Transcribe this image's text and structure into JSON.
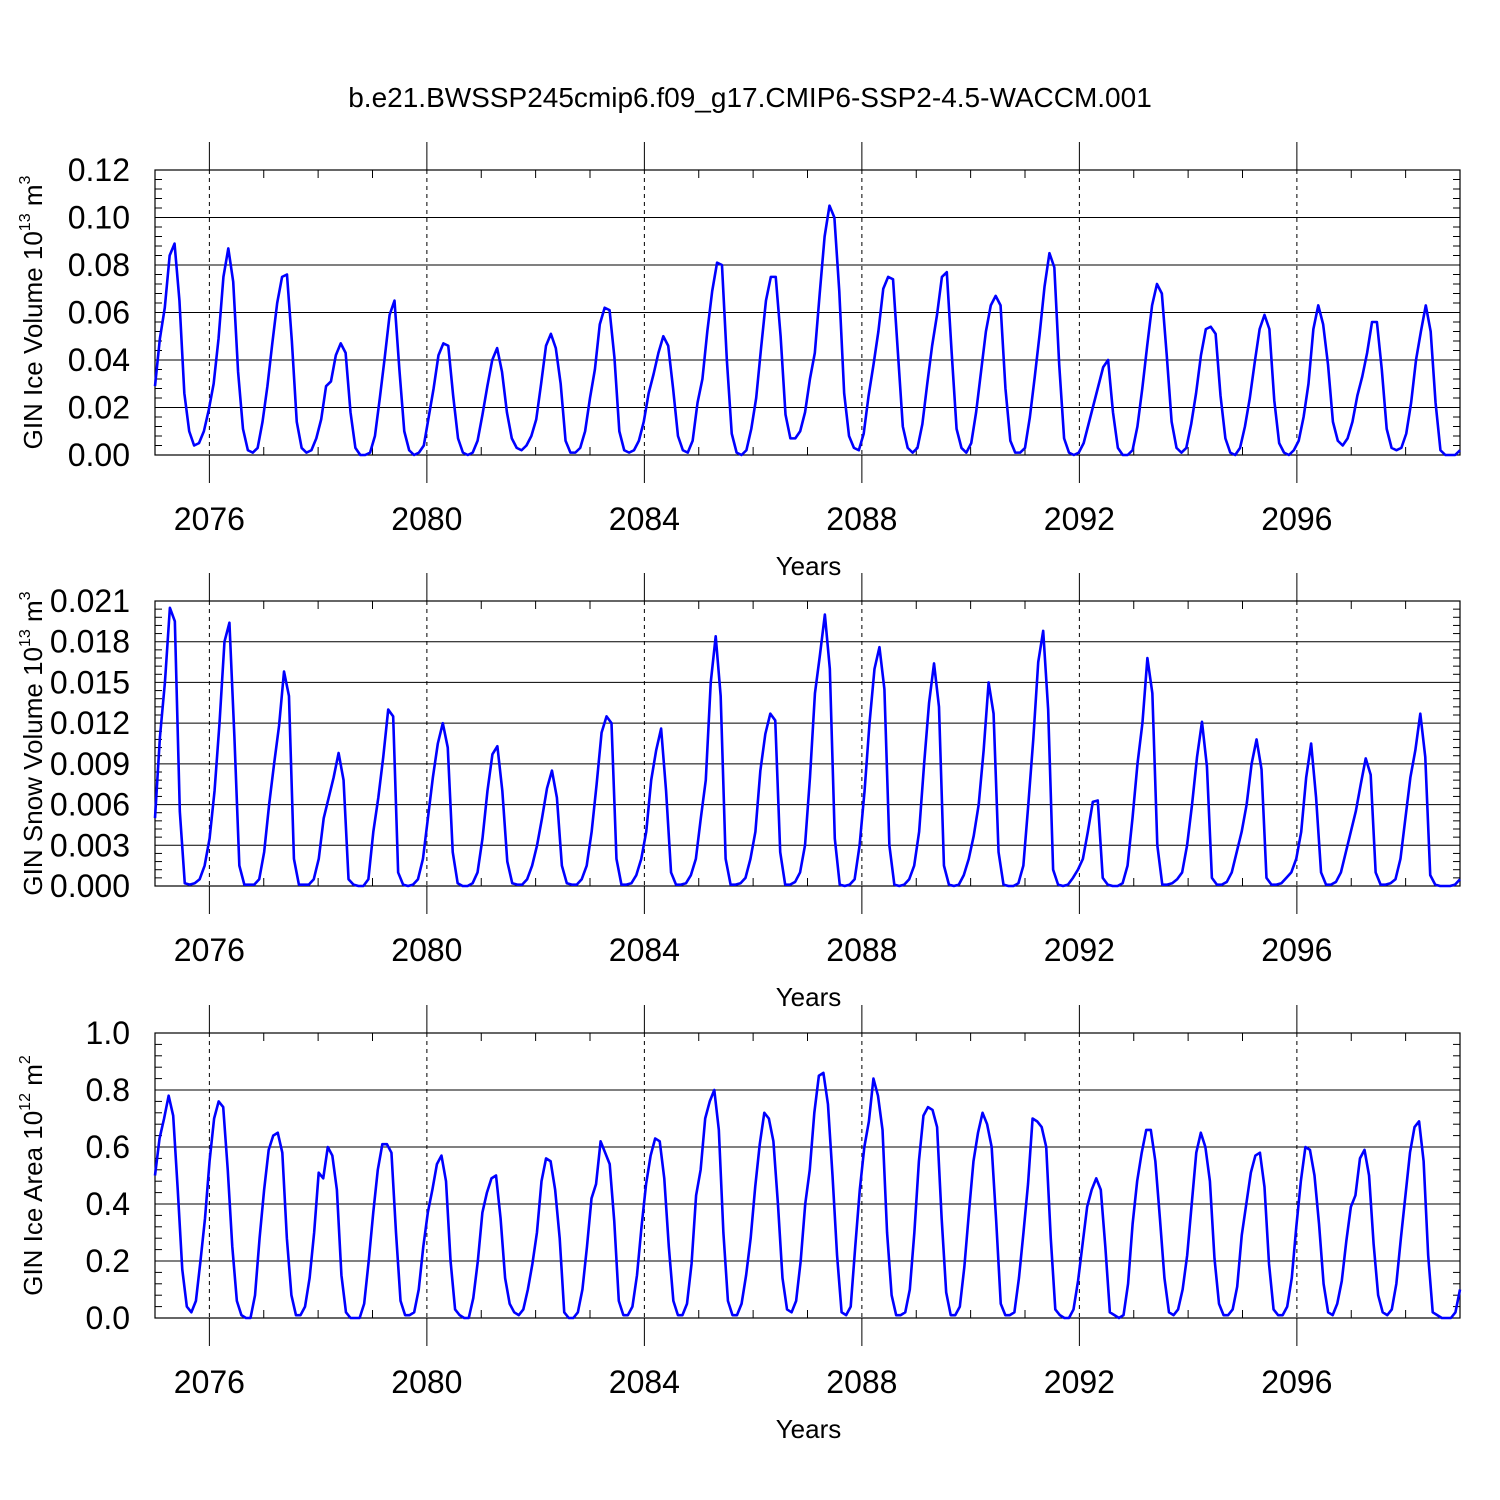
{
  "title": "b.e21.BWSSP245cmip6.f09_g17.CMIP6-SSP2-4.5-WACCM.001",
  "chart_data": [
    {
      "type": "line",
      "xlabel": "Years",
      "ylabel_main": "GIN Ice Volume 10",
      "ylabel_exp": "13",
      "ylabel_unit": " m",
      "ylabel_unit_exp": "3",
      "xlim": [
        2075,
        2099
      ],
      "xticks": [
        2076,
        2080,
        2084,
        2088,
        2092,
        2096
      ],
      "xtick_labels": [
        "2076",
        "2080",
        "2084",
        "2088",
        "2092",
        "2096"
      ],
      "ylim": [
        0,
        0.12
      ],
      "yticks": [
        0,
        0.02,
        0.04,
        0.06,
        0.08,
        0.1,
        0.12
      ],
      "ytick_labels": [
        "0.00",
        "0.02",
        "0.04",
        "0.06",
        "0.08",
        "0.10",
        "0.12"
      ],
      "line_color": "#0000ff",
      "series": [
        {
          "name": "GIN Ice Volume",
          "values": [
            0.029,
            0.049,
            0.062,
            0.084,
            0.089,
            0.065,
            0.026,
            0.01,
            0.004,
            0.005,
            0.01,
            0.019,
            0.03,
            0.049,
            0.075,
            0.087,
            0.073,
            0.035,
            0.011,
            0.002,
            0.001,
            0.003,
            0.014,
            0.029,
            0.047,
            0.064,
            0.075,
            0.076,
            0.048,
            0.014,
            0.003,
            0.001,
            0.002,
            0.007,
            0.015,
            0.029,
            0.031,
            0.042,
            0.047,
            0.043,
            0.018,
            0.003,
            0.0,
            0.0,
            0.001,
            0.008,
            0.024,
            0.041,
            0.059,
            0.065,
            0.036,
            0.01,
            0.002,
            0.0,
            0.001,
            0.004,
            0.016,
            0.028,
            0.042,
            0.047,
            0.046,
            0.025,
            0.007,
            0.001,
            0.0,
            0.001,
            0.006,
            0.017,
            0.029,
            0.04,
            0.045,
            0.035,
            0.018,
            0.007,
            0.003,
            0.002,
            0.004,
            0.008,
            0.015,
            0.03,
            0.046,
            0.051,
            0.045,
            0.03,
            0.006,
            0.001,
            0.001,
            0.003,
            0.01,
            0.024,
            0.036,
            0.055,
            0.062,
            0.061,
            0.041,
            0.01,
            0.002,
            0.001,
            0.002,
            0.006,
            0.014,
            0.026,
            0.034,
            0.043,
            0.05,
            0.046,
            0.028,
            0.008,
            0.002,
            0.001,
            0.006,
            0.022,
            0.032,
            0.052,
            0.069,
            0.081,
            0.08,
            0.04,
            0.009,
            0.001,
            0.0,
            0.002,
            0.011,
            0.024,
            0.045,
            0.065,
            0.075,
            0.075,
            0.05,
            0.017,
            0.007,
            0.007,
            0.01,
            0.018,
            0.032,
            0.043,
            0.068,
            0.092,
            0.105,
            0.1,
            0.069,
            0.026,
            0.008,
            0.003,
            0.002,
            0.009,
            0.025,
            0.038,
            0.052,
            0.07,
            0.075,
            0.074,
            0.043,
            0.012,
            0.003,
            0.001,
            0.003,
            0.013,
            0.03,
            0.046,
            0.059,
            0.075,
            0.077,
            0.043,
            0.011,
            0.003,
            0.001,
            0.005,
            0.018,
            0.035,
            0.052,
            0.063,
            0.067,
            0.063,
            0.028,
            0.006,
            0.001,
            0.001,
            0.003,
            0.016,
            0.033,
            0.051,
            0.071,
            0.085,
            0.079,
            0.038,
            0.007,
            0.001,
            0.0,
            0.001,
            0.005,
            0.013,
            0.021,
            0.029,
            0.037,
            0.04,
            0.018,
            0.003,
            0.0,
            0.0,
            0.002,
            0.012,
            0.028,
            0.046,
            0.063,
            0.072,
            0.068,
            0.042,
            0.014,
            0.003,
            0.001,
            0.003,
            0.013,
            0.026,
            0.042,
            0.053,
            0.054,
            0.051,
            0.025,
            0.007,
            0.001,
            0.0,
            0.003,
            0.012,
            0.024,
            0.039,
            0.053,
            0.059,
            0.053,
            0.023,
            0.005,
            0.001,
            0.0,
            0.002,
            0.006,
            0.016,
            0.03,
            0.053,
            0.063,
            0.055,
            0.038,
            0.014,
            0.006,
            0.004,
            0.007,
            0.014,
            0.025,
            0.033,
            0.043,
            0.056,
            0.056,
            0.036,
            0.011,
            0.003,
            0.002,
            0.003,
            0.009,
            0.022,
            0.04,
            0.052,
            0.063,
            0.052,
            0.022,
            0.002,
            0.0,
            0.0,
            0.0,
            0.002
          ]
        }
      ]
    },
    {
      "type": "line",
      "xlabel": "Years",
      "ylabel_main": "GIN Snow Volume 10",
      "ylabel_exp": "13",
      "ylabel_unit": " m",
      "ylabel_unit_exp": "3",
      "xlim": [
        2075,
        2099
      ],
      "xticks": [
        2076,
        2080,
        2084,
        2088,
        2092,
        2096
      ],
      "xtick_labels": [
        "2076",
        "2080",
        "2084",
        "2088",
        "2092",
        "2096"
      ],
      "ylim": [
        0,
        0.021
      ],
      "yticks": [
        0,
        0.003,
        0.006,
        0.009,
        0.012,
        0.015,
        0.018,
        0.021
      ],
      "ytick_labels": [
        "0.000",
        "0.003",
        "0.006",
        "0.009",
        "0.012",
        "0.015",
        "0.018",
        "0.021"
      ],
      "line_color": "#0000ff",
      "series": [
        {
          "name": "GIN Snow Volume",
          "values": [
            0.005,
            0.011,
            0.015,
            0.0205,
            0.0195,
            0.0055,
            0.0002,
            0.0001,
            0.0002,
            0.0005,
            0.0015,
            0.0035,
            0.007,
            0.012,
            0.018,
            0.0194,
            0.011,
            0.0015,
            0.0001,
            0.0001,
            0.0001,
            0.0005,
            0.0025,
            0.006,
            0.009,
            0.0118,
            0.0158,
            0.014,
            0.002,
            0.0001,
            0.0001,
            0.0001,
            0.0005,
            0.002,
            0.005,
            0.0065,
            0.008,
            0.0098,
            0.0078,
            0.0005,
            0.0001,
            0.0,
            0.0,
            0.0005,
            0.004,
            0.0065,
            0.0095,
            0.013,
            0.0125,
            0.001,
            0.0001,
            0.0,
            0.0001,
            0.0005,
            0.002,
            0.005,
            0.008,
            0.0105,
            0.012,
            0.0102,
            0.0025,
            0.0002,
            0.0,
            0.0,
            0.0002,
            0.001,
            0.0035,
            0.007,
            0.0097,
            0.0103,
            0.007,
            0.0018,
            0.0002,
            0.0001,
            0.0001,
            0.0005,
            0.0015,
            0.003,
            0.005,
            0.0072,
            0.0085,
            0.0065,
            0.0015,
            0.0002,
            0.0001,
            0.0001,
            0.0005,
            0.0015,
            0.004,
            0.0075,
            0.0113,
            0.0125,
            0.012,
            0.002,
            0.0001,
            0.0001,
            0.0002,
            0.0008,
            0.002,
            0.004,
            0.0078,
            0.01,
            0.0116,
            0.007,
            0.001,
            0.0001,
            0.0001,
            0.0002,
            0.0008,
            0.002,
            0.005,
            0.0078,
            0.015,
            0.0184,
            0.014,
            0.002,
            0.0001,
            0.0001,
            0.0002,
            0.0006,
            0.002,
            0.004,
            0.0085,
            0.0112,
            0.0127,
            0.0122,
            0.0025,
            0.0001,
            0.0001,
            0.0003,
            0.001,
            0.003,
            0.008,
            0.0142,
            0.017,
            0.02,
            0.016,
            0.0035,
            0.0001,
            0.0,
            0.0001,
            0.0005,
            0.003,
            0.007,
            0.012,
            0.016,
            0.0176,
            0.0145,
            0.003,
            0.0001,
            0.0,
            0.0001,
            0.0005,
            0.0015,
            0.004,
            0.009,
            0.0135,
            0.0164,
            0.0132,
            0.0015,
            0.0001,
            0.0,
            0.0001,
            0.0008,
            0.002,
            0.0037,
            0.006,
            0.01,
            0.015,
            0.0127,
            0.0025,
            0.0001,
            0.0,
            0.0,
            0.0002,
            0.0015,
            0.006,
            0.0108,
            0.0165,
            0.0188,
            0.013,
            0.0012,
            0.0001,
            0.0,
            0.0001,
            0.0006,
            0.0012,
            0.002,
            0.004,
            0.0062,
            0.0063,
            0.0006,
            0.0001,
            0.0,
            0.0,
            0.0002,
            0.0015,
            0.005,
            0.009,
            0.012,
            0.0168,
            0.0142,
            0.003,
            0.0001,
            0.0001,
            0.0002,
            0.0005,
            0.001,
            0.003,
            0.006,
            0.0095,
            0.0121,
            0.0088,
            0.0006,
            0.0001,
            0.0001,
            0.0003,
            0.001,
            0.0025,
            0.004,
            0.006,
            0.009,
            0.0108,
            0.0086,
            0.0006,
            0.0001,
            0.0001,
            0.0002,
            0.0006,
            0.001,
            0.002,
            0.004,
            0.008,
            0.0105,
            0.0065,
            0.001,
            0.0001,
            0.0001,
            0.0003,
            0.001,
            0.0025,
            0.004,
            0.0055,
            0.0075,
            0.0094,
            0.0082,
            0.001,
            0.0001,
            0.0001,
            0.0002,
            0.0005,
            0.002,
            0.005,
            0.008,
            0.01,
            0.0127,
            0.0095,
            0.0008,
            0.0001,
            0.0,
            0.0,
            0.0,
            0.0001,
            0.0005
          ]
        }
      ]
    },
    {
      "type": "line",
      "xlabel": "Years",
      "ylabel_main": "GIN Ice Area 10",
      "ylabel_exp": "12",
      "ylabel_unit": " m",
      "ylabel_unit_exp": "2",
      "xlim": [
        2075,
        2099
      ],
      "xticks": [
        2076,
        2080,
        2084,
        2088,
        2092,
        2096
      ],
      "xtick_labels": [
        "2076",
        "2080",
        "2084",
        "2088",
        "2092",
        "2096"
      ],
      "ylim": [
        0,
        1.0
      ],
      "yticks": [
        0,
        0.2,
        0.4,
        0.6,
        0.8,
        1.0
      ],
      "ytick_labels": [
        "0.0",
        "0.2",
        "0.4",
        "0.6",
        "0.8",
        "1.0"
      ],
      "line_color": "#0000ff",
      "series": [
        {
          "name": "GIN Ice Area",
          "values": [
            0.5,
            0.63,
            0.7,
            0.78,
            0.71,
            0.45,
            0.17,
            0.04,
            0.02,
            0.06,
            0.2,
            0.35,
            0.55,
            0.7,
            0.76,
            0.74,
            0.52,
            0.25,
            0.06,
            0.01,
            0.0,
            0.0,
            0.08,
            0.28,
            0.45,
            0.59,
            0.64,
            0.65,
            0.58,
            0.28,
            0.08,
            0.01,
            0.01,
            0.04,
            0.14,
            0.3,
            0.51,
            0.49,
            0.6,
            0.57,
            0.45,
            0.15,
            0.02,
            0.0,
            0.0,
            0.0,
            0.05,
            0.2,
            0.37,
            0.52,
            0.61,
            0.61,
            0.58,
            0.3,
            0.06,
            0.01,
            0.01,
            0.02,
            0.1,
            0.25,
            0.37,
            0.45,
            0.54,
            0.57,
            0.48,
            0.2,
            0.03,
            0.01,
            0.0,
            0.0,
            0.07,
            0.2,
            0.37,
            0.44,
            0.49,
            0.5,
            0.35,
            0.14,
            0.05,
            0.02,
            0.01,
            0.03,
            0.1,
            0.19,
            0.3,
            0.48,
            0.56,
            0.55,
            0.45,
            0.28,
            0.02,
            0.0,
            0.0,
            0.02,
            0.1,
            0.25,
            0.42,
            0.47,
            0.62,
            0.58,
            0.54,
            0.34,
            0.06,
            0.01,
            0.01,
            0.04,
            0.15,
            0.32,
            0.47,
            0.57,
            0.63,
            0.62,
            0.49,
            0.25,
            0.06,
            0.01,
            0.01,
            0.05,
            0.19,
            0.43,
            0.52,
            0.7,
            0.76,
            0.8,
            0.66,
            0.3,
            0.06,
            0.01,
            0.01,
            0.05,
            0.15,
            0.28,
            0.46,
            0.61,
            0.72,
            0.7,
            0.62,
            0.4,
            0.14,
            0.03,
            0.02,
            0.06,
            0.2,
            0.4,
            0.52,
            0.72,
            0.85,
            0.86,
            0.75,
            0.5,
            0.22,
            0.02,
            0.01,
            0.04,
            0.25,
            0.45,
            0.6,
            0.69,
            0.84,
            0.78,
            0.66,
            0.3,
            0.08,
            0.01,
            0.01,
            0.02,
            0.1,
            0.3,
            0.55,
            0.71,
            0.74,
            0.73,
            0.67,
            0.35,
            0.09,
            0.01,
            0.01,
            0.04,
            0.18,
            0.37,
            0.55,
            0.65,
            0.72,
            0.68,
            0.6,
            0.34,
            0.05,
            0.01,
            0.01,
            0.02,
            0.14,
            0.3,
            0.47,
            0.7,
            0.69,
            0.67,
            0.6,
            0.28,
            0.03,
            0.01,
            0.0,
            0.0,
            0.03,
            0.13,
            0.26,
            0.39,
            0.45,
            0.49,
            0.45,
            0.25,
            0.02,
            0.01,
            0.0,
            0.01,
            0.12,
            0.33,
            0.48,
            0.58,
            0.66,
            0.66,
            0.55,
            0.35,
            0.14,
            0.02,
            0.01,
            0.03,
            0.1,
            0.22,
            0.4,
            0.58,
            0.65,
            0.6,
            0.48,
            0.21,
            0.05,
            0.01,
            0.01,
            0.03,
            0.11,
            0.29,
            0.4,
            0.51,
            0.57,
            0.58,
            0.46,
            0.19,
            0.03,
            0.01,
            0.01,
            0.04,
            0.14,
            0.32,
            0.48,
            0.6,
            0.59,
            0.5,
            0.33,
            0.12,
            0.02,
            0.01,
            0.05,
            0.13,
            0.27,
            0.39,
            0.43,
            0.56,
            0.59,
            0.5,
            0.26,
            0.08,
            0.02,
            0.01,
            0.03,
            0.12,
            0.28,
            0.43,
            0.58,
            0.67,
            0.69,
            0.55,
            0.22,
            0.02,
            0.01,
            0.0,
            0.0,
            0.0,
            0.02,
            0.1
          ]
        }
      ]
    }
  ]
}
